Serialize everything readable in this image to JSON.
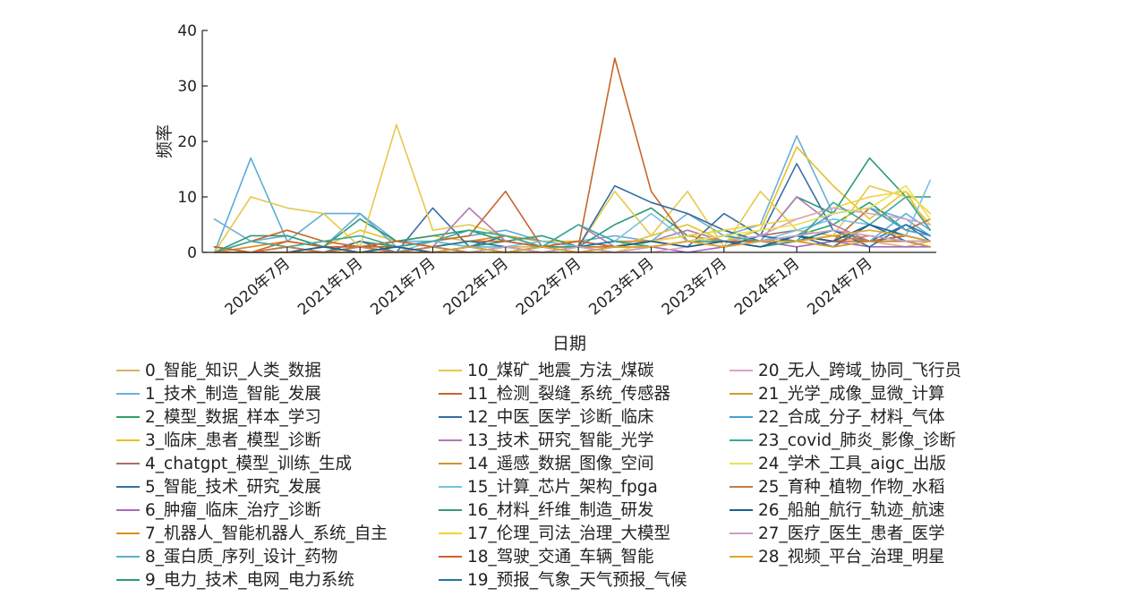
{
  "chart_data": {
    "type": "line",
    "title": "",
    "xlabel": "日期",
    "ylabel": "频率",
    "ylim": [
      0,
      40
    ],
    "yticks": [
      0,
      10,
      20,
      30,
      40
    ],
    "xticks": [
      "2020年7月",
      "2021年1月",
      "2021年7月",
      "2022年1月",
      "2022年7月",
      "2023年1月",
      "2023年7月",
      "2024年1月",
      "2024年7月"
    ],
    "grid": false,
    "legend_position": "bottom",
    "legend_columns": 3,
    "x": [
      "2020-01",
      "2020-04",
      "2020-07",
      "2020-10",
      "2021-01",
      "2021-04",
      "2021-07",
      "2021-10",
      "2022-01",
      "2022-04",
      "2022-07",
      "2022-10",
      "2023-01",
      "2023-04",
      "2023-07",
      "2023-10",
      "2024-01",
      "2024-04",
      "2024-07",
      "2024-10",
      "2024-12"
    ],
    "series": [
      {
        "name": "0_智能_知识_人类_数据",
        "color": "#d8b365",
        "values": [
          1,
          0,
          1,
          0,
          1,
          0,
          2,
          1,
          1,
          1,
          0,
          1,
          1,
          2,
          1,
          2,
          2,
          3,
          2,
          1,
          2
        ]
      },
      {
        "name": "1_技术_制造_智能_发展",
        "color": "#6baed6",
        "values": [
          6,
          2,
          3,
          1,
          7,
          2,
          2,
          1,
          3,
          1,
          2,
          3,
          2,
          7,
          3,
          5,
          21,
          7,
          8,
          6,
          3
        ]
      },
      {
        "name": "2_模型_数据_样本_学习",
        "color": "#2ca25f",
        "values": [
          1,
          0,
          1,
          0,
          2,
          1,
          2,
          1,
          2,
          1,
          1,
          2,
          1,
          2,
          3,
          2,
          3,
          5,
          9,
          4,
          3
        ]
      },
      {
        "name": "3_临床_患者_模型_诊断",
        "color": "#e6c229",
        "values": [
          0,
          1,
          2,
          1,
          4,
          2,
          3,
          2,
          3,
          2,
          2,
          1,
          3,
          5,
          2,
          4,
          19,
          12,
          6,
          11,
          4
        ]
      },
      {
        "name": "4_chatgpt_模型_训练_生成",
        "color": "#a6705a",
        "values": [
          0,
          0,
          0,
          0,
          0,
          0,
          0,
          0,
          0,
          0,
          0,
          0,
          1,
          2,
          1,
          3,
          4,
          3,
          2,
          2,
          2
        ]
      },
      {
        "name": "5_智能_技术_研究_发展",
        "color": "#3a6ea5",
        "values": [
          1,
          0,
          1,
          0,
          2,
          0,
          8,
          1,
          3,
          1,
          2,
          1,
          2,
          1,
          7,
          3,
          16,
          4,
          2,
          5,
          2
        ]
      },
      {
        "name": "6_肿瘤_临床_治疗_诊断",
        "color": "#a569bd",
        "values": [
          0,
          0,
          1,
          0,
          0,
          1,
          0,
          1,
          1,
          0,
          1,
          0,
          1,
          0,
          1,
          2,
          1,
          2,
          1,
          1,
          1
        ]
      },
      {
        "name": "7_机器人_智能机器人_系统_自主",
        "color": "#e08b2b",
        "values": [
          0,
          1,
          2,
          1,
          1,
          2,
          1,
          2,
          3,
          2,
          1,
          2,
          2,
          3,
          2,
          2,
          3,
          2,
          3,
          2,
          2
        ]
      },
      {
        "name": "8_蛋白质_序列_设计_药物",
        "color": "#5aaed8",
        "values": [
          0,
          17,
          2,
          7,
          7,
          1,
          2,
          3,
          4,
          2,
          1,
          2,
          1,
          2,
          2,
          3,
          2,
          3,
          2,
          7,
          4
        ]
      },
      {
        "name": "9_电力_技术_电网_电力系统",
        "color": "#2b9a78",
        "values": [
          0,
          3,
          3,
          1,
          6,
          2,
          3,
          4,
          2,
          3,
          1,
          5,
          8,
          3,
          4,
          2,
          10,
          7,
          17,
          10,
          10
        ]
      },
      {
        "name": "10_煤矿_地震_方法_煤碳",
        "color": "#e5c94a",
        "values": [
          0,
          10,
          8,
          7,
          1,
          23,
          4,
          5,
          3,
          1,
          1,
          11,
          3,
          11,
          1,
          11,
          4,
          3,
          12,
          10,
          5
        ]
      },
      {
        "name": "11_检测_裂缝_系统_传感器",
        "color": "#c8652b",
        "values": [
          0,
          2,
          4,
          2,
          1,
          1,
          2,
          3,
          11,
          1,
          1,
          35,
          11,
          2,
          3,
          2,
          3,
          2,
          8,
          4,
          6
        ]
      },
      {
        "name": "12_中医_医学_诊断_临床",
        "color": "#2e6da4",
        "values": [
          0,
          0,
          1,
          0,
          1,
          0,
          1,
          0,
          1,
          0,
          1,
          12,
          9,
          7,
          4,
          2,
          3,
          1,
          5,
          2,
          1
        ]
      },
      {
        "name": "13_技术_研究_智能_光学",
        "color": "#b07ab0",
        "values": [
          0,
          0,
          1,
          0,
          1,
          0,
          1,
          8,
          2,
          1,
          5,
          1,
          2,
          4,
          2,
          2,
          10,
          5,
          2,
          3,
          2
        ]
      },
      {
        "name": "14_遥感_数据_图像_空间",
        "color": "#c9972e",
        "values": [
          0,
          0,
          0,
          1,
          0,
          1,
          0,
          1,
          0,
          1,
          0,
          1,
          1,
          2,
          1,
          2,
          2,
          1,
          2,
          2,
          1
        ]
      },
      {
        "name": "15_计算_芯片_架构_fpga",
        "color": "#76c1e0",
        "values": [
          0,
          0,
          1,
          0,
          1,
          0,
          2,
          1,
          1,
          2,
          1,
          2,
          7,
          2,
          3,
          2,
          4,
          6,
          5,
          3,
          13
        ]
      },
      {
        "name": "16_材料_纤维_制造_研发",
        "color": "#3d9970",
        "values": [
          0,
          0,
          0,
          1,
          0,
          1,
          0,
          1,
          0,
          1,
          1,
          1,
          1,
          2,
          2,
          1,
          2,
          3,
          2,
          3,
          2
        ]
      },
      {
        "name": "17_伦理_司法_治理_大模型",
        "color": "#f0d33a",
        "values": [
          0,
          0,
          0,
          0,
          0,
          0,
          0,
          0,
          0,
          0,
          0,
          0,
          2,
          3,
          4,
          5,
          6,
          8,
          10,
          11,
          7
        ]
      },
      {
        "name": "18_驾驶_交通_车辆_智能",
        "color": "#d35f2a",
        "values": [
          1,
          0,
          2,
          1,
          1,
          2,
          1,
          2,
          2,
          1,
          2,
          1,
          2,
          1,
          2,
          2,
          3,
          2,
          2,
          3,
          2
        ]
      },
      {
        "name": "19_预报_气象_天气预报_气候",
        "color": "#1f78a4",
        "values": [
          0,
          0,
          1,
          0,
          1,
          0,
          1,
          2,
          1,
          0,
          1,
          2,
          1,
          2,
          1,
          3,
          2,
          4,
          1,
          5,
          3
        ]
      },
      {
        "name": "20_无人_跨域_协同_飞行员",
        "color": "#d7a6c8",
        "values": [
          0,
          0,
          0,
          0,
          0,
          0,
          0,
          0,
          0,
          0,
          0,
          0,
          0,
          1,
          2,
          3,
          6,
          8,
          7,
          6,
          5
        ]
      },
      {
        "name": "21_光学_成像_显微_计算",
        "color": "#d99a2b",
        "values": [
          0,
          0,
          1,
          0,
          1,
          0,
          1,
          0,
          1,
          0,
          1,
          1,
          1,
          2,
          1,
          2,
          2,
          1,
          2,
          2,
          2
        ]
      },
      {
        "name": "22_合成_分子_材料_气体",
        "color": "#4a9fd5",
        "values": [
          0,
          0,
          0,
          1,
          0,
          1,
          0,
          1,
          0,
          1,
          0,
          1,
          1,
          2,
          1,
          2,
          3,
          7,
          8,
          4,
          3
        ]
      },
      {
        "name": "23_covid_肺炎_影像_诊断",
        "color": "#3aa89a",
        "values": [
          0,
          2,
          1,
          2,
          3,
          1,
          2,
          4,
          3,
          1,
          5,
          2,
          1,
          2,
          3,
          2,
          2,
          9,
          5,
          10,
          4
        ]
      },
      {
        "name": "24_学术_工具_aigc_出版",
        "color": "#eadf5b",
        "values": [
          0,
          0,
          0,
          0,
          0,
          0,
          0,
          0,
          0,
          0,
          0,
          0,
          1,
          2,
          3,
          4,
          5,
          7,
          8,
          12,
          6
        ]
      },
      {
        "name": "25_育种_植物_作物_水稻",
        "color": "#c97b43",
        "values": [
          0,
          0,
          1,
          0,
          1,
          0,
          1,
          0,
          1,
          0,
          1,
          1,
          1,
          2,
          1,
          2,
          2,
          3,
          2,
          2,
          2
        ]
      },
      {
        "name": "26_船舶_航行_轨迹_航速",
        "color": "#1b5f8c",
        "values": [
          0,
          0,
          0,
          1,
          0,
          1,
          0,
          1,
          0,
          1,
          0,
          1,
          2,
          1,
          2,
          1,
          3,
          2,
          5,
          3,
          2
        ]
      },
      {
        "name": "27_医疗_医生_患者_医学",
        "color": "#c79fc6",
        "values": [
          0,
          0,
          0,
          0,
          0,
          0,
          0,
          0,
          1,
          0,
          1,
          0,
          1,
          2,
          1,
          2,
          3,
          4,
          3,
          2,
          2
        ]
      },
      {
        "name": "28_视频_平台_治理_明星",
        "color": "#e3a629",
        "values": [
          0,
          0,
          0,
          0,
          0,
          0,
          0,
          1,
          0,
          1,
          0,
          1,
          1,
          2,
          1,
          2,
          2,
          3,
          4,
          3,
          2
        ]
      }
    ]
  }
}
